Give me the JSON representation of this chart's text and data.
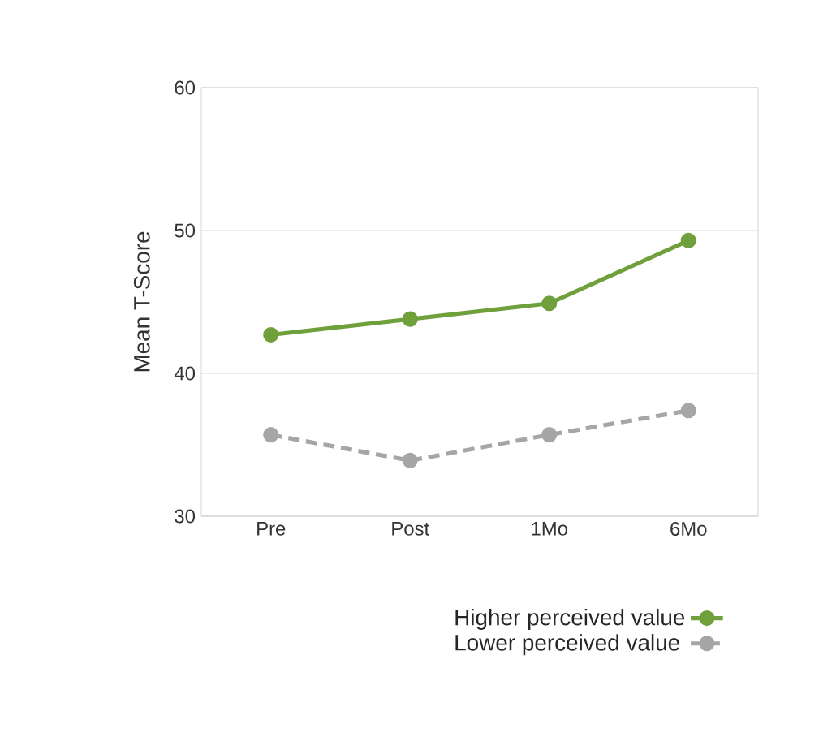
{
  "chart_data": {
    "type": "line",
    "ylabel": "Mean T-Score",
    "categories": [
      "Pre",
      "Post",
      "1Mo",
      "6Mo"
    ],
    "series": [
      {
        "name": "Higher perceived value",
        "color": "#70a03c",
        "values": [
          42.7,
          43.8,
          44.9,
          49.3
        ],
        "line_style": "solid"
      },
      {
        "name": "Lower perceived value",
        "color": "#a6a6a6",
        "values": [
          35.7,
          33.9,
          35.7,
          37.4
        ],
        "line_style": "dashed"
      }
    ],
    "ylim": [
      30,
      60
    ],
    "yticks": [
      30,
      40,
      50,
      60
    ],
    "grid": "y",
    "legend": "bottom",
    "marker": "circle"
  }
}
